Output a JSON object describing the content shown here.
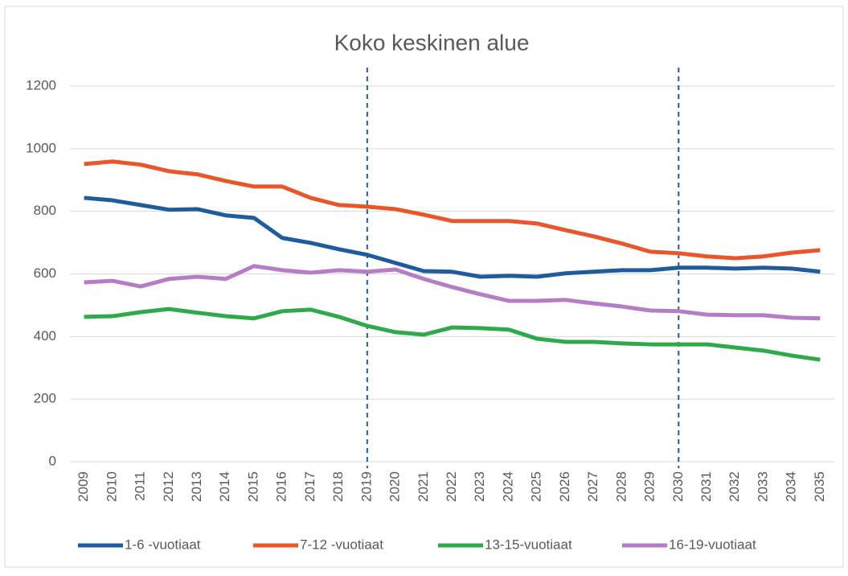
{
  "chart_data": {
    "type": "line",
    "title": "Koko keskinen alue",
    "categories": [
      "2009",
      "2010",
      "2011",
      "2012",
      "2013",
      "2014",
      "2015",
      "2016",
      "2017",
      "2018",
      "2019",
      "2020",
      "2021",
      "2022",
      "2023",
      "2024",
      "2025",
      "2026",
      "2027",
      "2028",
      "2029",
      "2030",
      "2031",
      "2032",
      "2033",
      "2034",
      "2035"
    ],
    "series": [
      {
        "name": "1-6 -vuotiaat",
        "color": "#1f5c9e",
        "values": [
          843,
          835,
          820,
          805,
          807,
          787,
          779,
          715,
          699,
          679,
          661,
          635,
          609,
          607,
          591,
          594,
          591,
          602,
          607,
          612,
          612,
          620,
          620,
          617,
          620,
          617,
          607
        ]
      },
      {
        "name": "7-12 -vuotiaat",
        "color": "#e8562a",
        "values": [
          951,
          959,
          949,
          928,
          918,
          897,
          879,
          879,
          843,
          820,
          815,
          807,
          789,
          769,
          769,
          769,
          761,
          740,
          720,
          697,
          671,
          666,
          656,
          650,
          656,
          668,
          676
        ]
      },
      {
        "name": "13-15-vuotiaat",
        "color": "#2eaa4a",
        "values": [
          463,
          465,
          478,
          488,
          476,
          465,
          458,
          481,
          486,
          463,
          434,
          414,
          406,
          429,
          427,
          422,
          393,
          383,
          383,
          378,
          375,
          375,
          375,
          365,
          355,
          339,
          326
        ]
      },
      {
        "name": "16-19-vuotiaat",
        "color": "#b77cc6",
        "values": [
          573,
          578,
          560,
          584,
          591,
          584,
          625,
          612,
          604,
          612,
          607,
          614,
          584,
          558,
          535,
          514,
          514,
          517,
          506,
          496,
          483,
          481,
          470,
          468,
          468,
          460,
          458
        ]
      }
    ],
    "ylim": [
      0,
      1200
    ],
    "yticks": [
      0,
      200,
      400,
      600,
      800,
      1000,
      1200
    ],
    "grid": true,
    "vlines": [
      "2019",
      "2030"
    ],
    "legend": "bottom"
  }
}
